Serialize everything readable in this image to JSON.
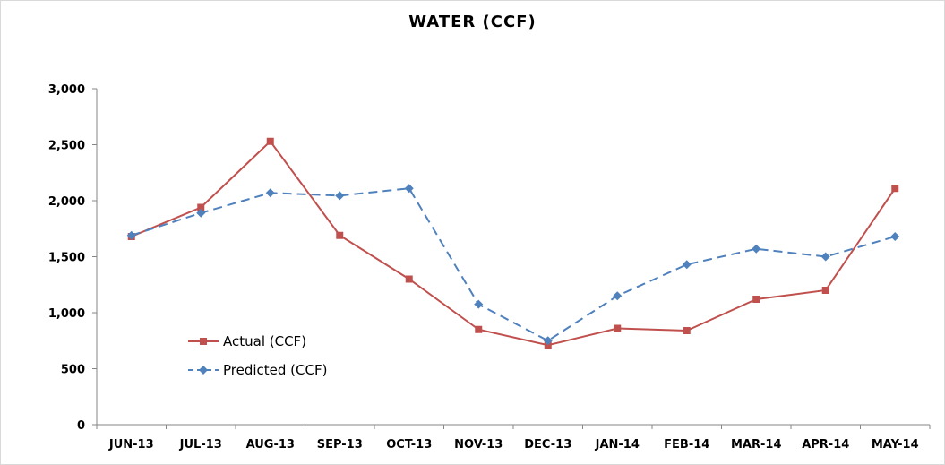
{
  "chart_data": {
    "type": "line",
    "title": "WATER (CCF)",
    "xlabel": "",
    "ylabel": "",
    "categories": [
      "JUN-13",
      "JUL-13",
      "AUG-13",
      "SEP-13",
      "OCT-13",
      "NOV-13",
      "DEC-13",
      "JAN-14",
      "FEB-14",
      "MAR-14",
      "APR-14",
      "MAY-14"
    ],
    "y_ticks": [
      "0",
      "500",
      "1,000",
      "1,500",
      "2,000",
      "2,500",
      "3,000"
    ],
    "ylim": [
      0,
      3000
    ],
    "grid": false,
    "legend_position": "bottom-left",
    "series": [
      {
        "name": "Actual (CCF)",
        "color": "#c0504d",
        "line_style": "solid",
        "marker": "square",
        "values": [
          1680,
          1940,
          2530,
          1690,
          1300,
          850,
          710,
          860,
          840,
          1120,
          1200,
          2110
        ]
      },
      {
        "name": "Predicted (CCF)",
        "color": "#4f81bd",
        "line_style": "dashed",
        "marker": "diamond",
        "values": [
          1690,
          1890,
          2070,
          2045,
          2110,
          1075,
          750,
          1150,
          1430,
          1570,
          1500,
          1680
        ]
      }
    ]
  }
}
